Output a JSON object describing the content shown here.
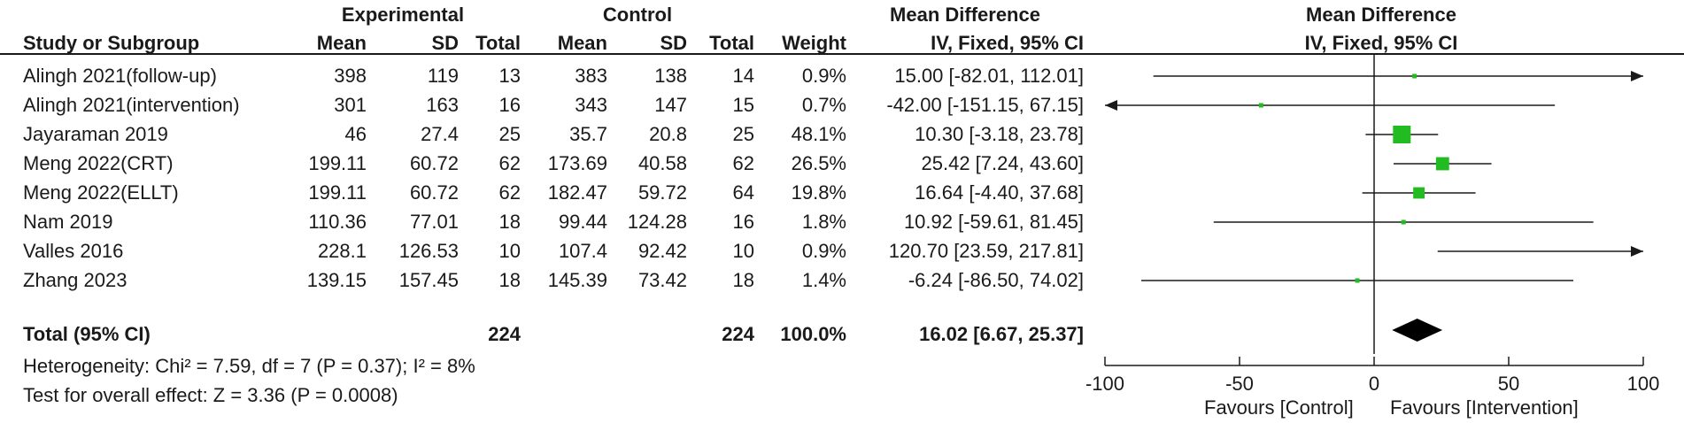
{
  "header": {
    "group_experimental": "Experimental",
    "group_control": "Control",
    "mean_difference": "Mean Difference",
    "mean_difference_plot": "Mean Difference",
    "col_study": "Study or Subgroup",
    "col_exp_mean": "Mean",
    "col_exp_sd": "SD",
    "col_exp_total": "Total",
    "col_ctl_mean": "Mean",
    "col_ctl_sd": "SD",
    "col_ctl_total": "Total",
    "col_weight": "Weight",
    "col_ci": "IV, Fixed, 95% CI",
    "col_ci_plot": "IV, Fixed, 95% CI"
  },
  "studies": [
    {
      "name": "Alingh 2021(follow-up)",
      "exp_mean": "398",
      "exp_sd": "119",
      "exp_total": "13",
      "ctl_mean": "383",
      "ctl_sd": "138",
      "ctl_total": "14",
      "weight": "0.9%",
      "ci_text": "15.00 [-82.01, 112.01]"
    },
    {
      "name": "Alingh 2021(intervention)",
      "exp_mean": "301",
      "exp_sd": "163",
      "exp_total": "16",
      "ctl_mean": "343",
      "ctl_sd": "147",
      "ctl_total": "15",
      "weight": "0.7%",
      "ci_text": "-42.00 [-151.15, 67.15]"
    },
    {
      "name": "Jayaraman 2019",
      "exp_mean": "46",
      "exp_sd": "27.4",
      "exp_total": "25",
      "ctl_mean": "35.7",
      "ctl_sd": "20.8",
      "ctl_total": "25",
      "weight": "48.1%",
      "ci_text": "10.30 [-3.18, 23.78]"
    },
    {
      "name": "Meng 2022(CRT)",
      "exp_mean": "199.11",
      "exp_sd": "60.72",
      "exp_total": "62",
      "ctl_mean": "173.69",
      "ctl_sd": "40.58",
      "ctl_total": "62",
      "weight": "26.5%",
      "ci_text": "25.42 [7.24, 43.60]"
    },
    {
      "name": "Meng 2022(ELLT)",
      "exp_mean": "199.11",
      "exp_sd": "60.72",
      "exp_total": "62",
      "ctl_mean": "182.47",
      "ctl_sd": "59.72",
      "ctl_total": "64",
      "weight": "19.8%",
      "ci_text": "16.64 [-4.40, 37.68]"
    },
    {
      "name": "Nam 2019",
      "exp_mean": "110.36",
      "exp_sd": "77.01",
      "exp_total": "18",
      "ctl_mean": "99.44",
      "ctl_sd": "124.28",
      "ctl_total": "16",
      "weight": "1.8%",
      "ci_text": "10.92 [-59.61, 81.45]"
    },
    {
      "name": "Valles 2016",
      "exp_mean": "228.1",
      "exp_sd": "126.53",
      "exp_total": "10",
      "ctl_mean": "107.4",
      "ctl_sd": "92.42",
      "ctl_total": "10",
      "weight": "0.9%",
      "ci_text": "120.70 [23.59, 217.81]"
    },
    {
      "name": "Zhang 2023",
      "exp_mean": "139.15",
      "exp_sd": "157.45",
      "exp_total": "18",
      "ctl_mean": "145.39",
      "ctl_sd": "73.42",
      "ctl_total": "18",
      "weight": "1.4%",
      "ci_text": "-6.24 [-86.50, 74.02]"
    }
  ],
  "total": {
    "label": "Total (95% CI)",
    "exp_total": "224",
    "ctl_total": "224",
    "weight": "100.0%",
    "ci_text": "16.02 [6.67, 25.37]"
  },
  "heterogeneity": "Heterogeneity: Chi² = 7.59, df = 7 (P = 0.37); I² = 8%",
  "overall_effect": "Test for overall effect: Z = 3.36 (P = 0.0008)",
  "favours_left": "Favours [Control]",
  "favours_right": "Favours [Intervention]",
  "colors": {
    "marker": "#22bb22",
    "line": "#1a1a1a",
    "diamond": "#000000"
  },
  "chart_data": {
    "type": "forest",
    "xlim": [
      -100,
      100
    ],
    "ticks": [
      -100,
      -50,
      0,
      50,
      100
    ],
    "points": [
      {
        "study": "Alingh 2021(follow-up)",
        "md": 15.0,
        "lo": -82.01,
        "hi": 112.01,
        "weight": 0.9
      },
      {
        "study": "Alingh 2021(intervention)",
        "md": -42.0,
        "lo": -151.15,
        "hi": 67.15,
        "weight": 0.7
      },
      {
        "study": "Jayaraman 2019",
        "md": 10.3,
        "lo": -3.18,
        "hi": 23.78,
        "weight": 48.1
      },
      {
        "study": "Meng 2022(CRT)",
        "md": 25.42,
        "lo": 7.24,
        "hi": 43.6,
        "weight": 26.5
      },
      {
        "study": "Meng 2022(ELLT)",
        "md": 16.64,
        "lo": -4.4,
        "hi": 37.68,
        "weight": 19.8
      },
      {
        "study": "Nam 2019",
        "md": 10.92,
        "lo": -59.61,
        "hi": 81.45,
        "weight": 1.8
      },
      {
        "study": "Valles 2016",
        "md": 120.7,
        "lo": 23.59,
        "hi": 217.81,
        "weight": 0.9
      },
      {
        "study": "Zhang 2023",
        "md": -6.24,
        "lo": -86.5,
        "hi": 74.02,
        "weight": 1.4
      }
    ],
    "pooled": {
      "md": 16.02,
      "lo": 6.67,
      "hi": 25.37
    }
  }
}
